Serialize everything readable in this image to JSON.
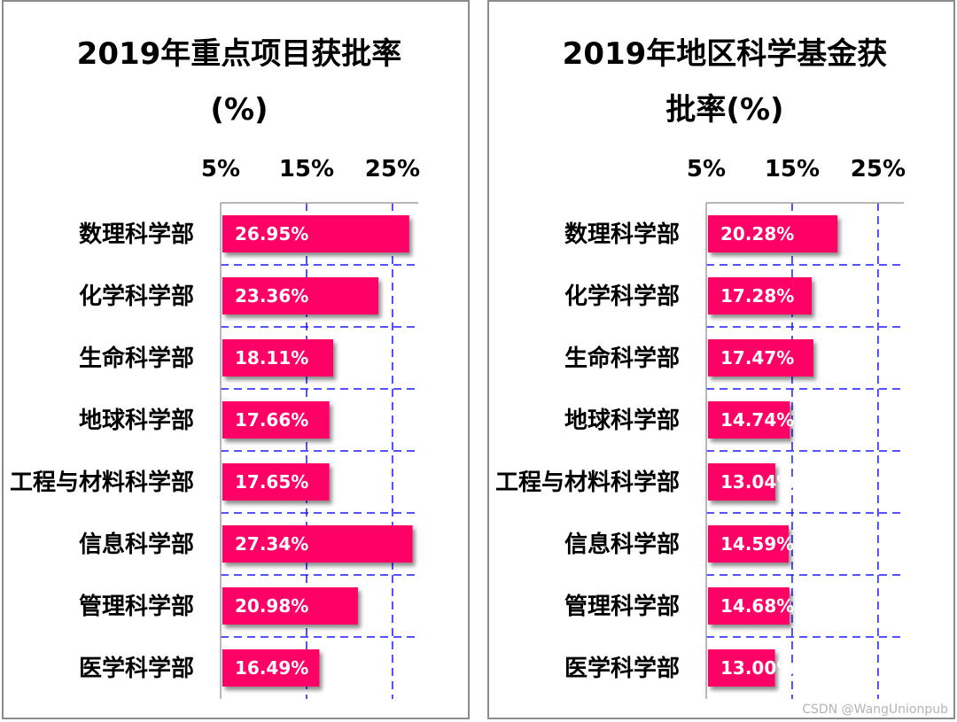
{
  "chart_data": [
    {
      "type": "bar",
      "orientation": "horizontal",
      "title_line1": "2019年重点项目获批率",
      "title_line2": "(%)",
      "tick_labels": [
        "5%",
        "15%",
        "25%"
      ],
      "categories": [
        "数理科学部",
        "化学科学部",
        "生命科学部",
        "地球科学部",
        "工程与材料科学部",
        "信息科学部",
        "管理科学部",
        "医学科学部"
      ],
      "values": [
        26.95,
        23.36,
        18.11,
        17.66,
        17.65,
        27.34,
        20.98,
        16.49
      ],
      "value_labels": [
        "26.95%",
        "23.36%",
        "18.11%",
        "17.66%",
        "17.65%",
        "27.34%",
        "20.98%",
        "16.49%"
      ],
      "xlim": [
        5,
        28
      ],
      "grid": true,
      "bar_color": "#ff0066"
    },
    {
      "type": "bar",
      "orientation": "horizontal",
      "title_line1": "2019年地区科学基金获",
      "title_line2": "批率(%)",
      "tick_labels": [
        "5%",
        "15%",
        "25%"
      ],
      "categories": [
        "数理科学部",
        "化学科学部",
        "生命科学部",
        "地球科学部",
        "工程与材料科学部",
        "信息科学部",
        "管理科学部",
        "医学科学部"
      ],
      "values": [
        20.28,
        17.28,
        17.47,
        14.74,
        13.04,
        14.59,
        14.68,
        13.0
      ],
      "value_labels": [
        "20.28%",
        "17.28%",
        "17.47%",
        "14.74%",
        "13.04%",
        "14.59%",
        "14.68%",
        "13.00%"
      ],
      "xlim": [
        5,
        28
      ],
      "grid": true,
      "bar_color": "#ff0066"
    }
  ],
  "watermark": "CSDN @WangUnionpub"
}
